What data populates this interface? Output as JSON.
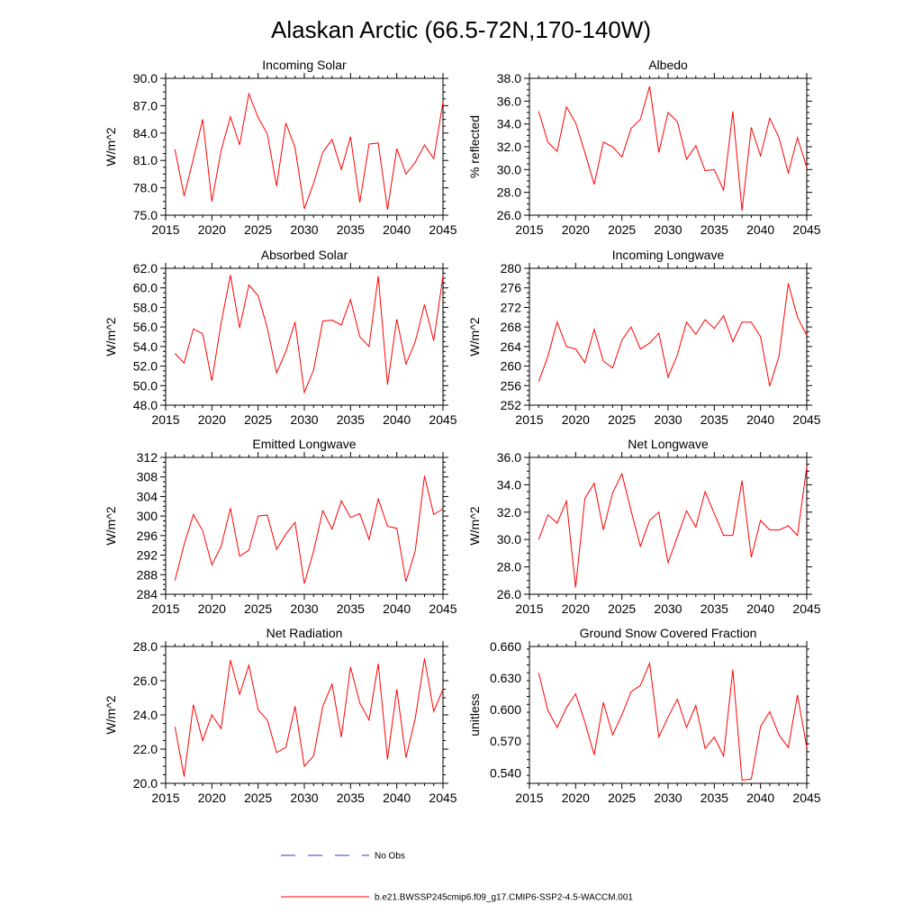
{
  "figure": {
    "title": "Alaskan Arctic (66.5-72N,170-140W)"
  },
  "legend": {
    "obs_label": "No Obs",
    "obs_color": "#3333cc",
    "model_label": "b.e21.BWSSP245cmip6.f09_g17.CMIP6-SSP2-4.5-WACCM.001",
    "model_color": "#ff0000"
  },
  "chart_data": [
    {
      "type": "line",
      "title": "Incoming Solar",
      "ylabel": "W/m^2",
      "xlim": [
        2015,
        2045
      ],
      "ylim": [
        75,
        90
      ],
      "xticks": [
        2015,
        2020,
        2025,
        2030,
        2035,
        2040,
        2045
      ],
      "yticks": [
        "75.0",
        "78.0",
        "81.0",
        "84.0",
        "87.0",
        "90.0"
      ],
      "x": [
        2016,
        2017,
        2018,
        2019,
        2020,
        2021,
        2022,
        2023,
        2024,
        2025,
        2026,
        2027,
        2028,
        2029,
        2030,
        2031,
        2032,
        2033,
        2034,
        2035,
        2036,
        2037,
        2038,
        2039,
        2040,
        2041,
        2042,
        2043,
        2044,
        2045
      ],
      "series": [
        {
          "values": [
            82.2,
            77.1,
            81.2,
            85.5,
            76.5,
            82.1,
            85.8,
            82.7,
            88.3,
            85.7,
            83.9,
            78.2,
            85.1,
            82.4,
            75.7,
            78.5,
            81.9,
            83.3,
            80.0,
            83.6,
            76.4,
            82.8,
            82.9,
            75.6,
            82.3,
            79.5,
            80.8,
            82.7,
            81.2,
            87.4
          ]
        }
      ]
    },
    {
      "type": "line",
      "title": "Albedo",
      "ylabel": "% reflected",
      "xlim": [
        2015,
        2045
      ],
      "ylim": [
        26,
        38
      ],
      "xticks": [
        2015,
        2020,
        2025,
        2030,
        2035,
        2040,
        2045
      ],
      "yticks": [
        "26.0",
        "28.0",
        "30.0",
        "32.0",
        "34.0",
        "36.0",
        "38.0"
      ],
      "x": [
        2016,
        2017,
        2018,
        2019,
        2020,
        2021,
        2022,
        2023,
        2024,
        2025,
        2026,
        2027,
        2028,
        2029,
        2030,
        2031,
        2032,
        2033,
        2034,
        2035,
        2036,
        2037,
        2038,
        2039,
        2040,
        2041,
        2042,
        2043,
        2044,
        2045
      ],
      "series": [
        {
          "values": [
            35.1,
            32.4,
            31.6,
            35.5,
            34.1,
            31.5,
            28.7,
            32.4,
            32.0,
            31.1,
            33.6,
            34.4,
            37.3,
            31.5,
            35.0,
            34.2,
            30.9,
            32.1,
            29.9,
            30.0,
            28.2,
            35.1,
            26.4,
            33.7,
            31.2,
            34.5,
            32.8,
            29.7,
            32.8,
            30.2
          ]
        }
      ]
    },
    {
      "type": "line",
      "title": "Absorbed Solar",
      "ylabel": "W/m^2",
      "xlim": [
        2015,
        2045
      ],
      "ylim": [
        48,
        62
      ],
      "xticks": [
        2015,
        2020,
        2025,
        2030,
        2035,
        2040,
        2045
      ],
      "yticks": [
        "48.0",
        "50.0",
        "52.0",
        "54.0",
        "56.0",
        "58.0",
        "60.0",
        "62.0"
      ],
      "x": [
        2016,
        2017,
        2018,
        2019,
        2020,
        2021,
        2022,
        2023,
        2024,
        2025,
        2026,
        2027,
        2028,
        2029,
        2030,
        2031,
        2032,
        2033,
        2034,
        2035,
        2036,
        2037,
        2038,
        2039,
        2040,
        2041,
        2042,
        2043,
        2044,
        2045
      ],
      "series": [
        {
          "values": [
            53.3,
            52.3,
            55.8,
            55.3,
            50.5,
            56.4,
            61.3,
            55.9,
            60.3,
            59.2,
            55.9,
            51.3,
            53.5,
            56.5,
            49.3,
            51.6,
            56.6,
            56.7,
            56.2,
            58.8,
            55.0,
            54.0,
            61.2,
            50.1,
            56.8,
            52.2,
            54.5,
            58.3,
            54.6,
            61.2
          ]
        }
      ]
    },
    {
      "type": "line",
      "title": "Incoming Longwave",
      "ylabel": "W/m^2",
      "xlim": [
        2015,
        2045
      ],
      "ylim": [
        252,
        280
      ],
      "xticks": [
        2015,
        2020,
        2025,
        2030,
        2035,
        2040,
        2045
      ],
      "yticks": [
        "252",
        "256",
        "260",
        "264",
        "268",
        "272",
        "276",
        "280"
      ],
      "x": [
        2016,
        2017,
        2018,
        2019,
        2020,
        2021,
        2022,
        2023,
        2024,
        2025,
        2026,
        2027,
        2028,
        2029,
        2030,
        2031,
        2032,
        2033,
        2034,
        2035,
        2036,
        2037,
        2038,
        2039,
        2040,
        2041,
        2042,
        2043,
        2044,
        2045
      ],
      "series": [
        {
          "values": [
            256.8,
            262.0,
            269.0,
            264.0,
            263.5,
            260.7,
            267.5,
            261.0,
            259.6,
            265.3,
            268.0,
            263.5,
            264.7,
            266.7,
            257.7,
            262.3,
            269.0,
            266.5,
            269.5,
            267.7,
            270.3,
            265.0,
            269.0,
            269.0,
            266.0,
            255.9,
            262.0,
            276.9,
            270.0,
            266.3
          ]
        }
      ]
    },
    {
      "type": "line",
      "title": "Emitted Longwave",
      "ylabel": "W/m^2",
      "xlim": [
        2015,
        2045
      ],
      "ylim": [
        284,
        312
      ],
      "xticks": [
        2015,
        2020,
        2025,
        2030,
        2035,
        2040,
        2045
      ],
      "yticks": [
        "284",
        "288",
        "292",
        "296",
        "300",
        "304",
        "308",
        "312"
      ],
      "x": [
        2016,
        2017,
        2018,
        2019,
        2020,
        2021,
        2022,
        2023,
        2024,
        2025,
        2026,
        2027,
        2028,
        2029,
        2030,
        2031,
        2032,
        2033,
        2034,
        2035,
        2036,
        2037,
        2038,
        2039,
        2040,
        2041,
        2042,
        2043,
        2044,
        2045
      ],
      "series": [
        {
          "values": [
            286.8,
            294.2,
            300.3,
            297.0,
            290.0,
            293.8,
            301.6,
            291.8,
            293.0,
            300.0,
            300.2,
            293.2,
            296.3,
            298.7,
            286.2,
            292.8,
            301.1,
            297.3,
            303.1,
            299.7,
            300.5,
            295.2,
            303.5,
            297.9,
            297.5,
            286.6,
            292.9,
            308.2,
            300.3,
            301.5
          ]
        }
      ]
    },
    {
      "type": "line",
      "title": "Net Longwave",
      "ylabel": "W/m^2",
      "xlim": [
        2015,
        2045
      ],
      "ylim": [
        26,
        36
      ],
      "xticks": [
        2015,
        2020,
        2025,
        2030,
        2035,
        2040,
        2045
      ],
      "yticks": [
        "26.0",
        "28.0",
        "30.0",
        "32.0",
        "34.0",
        "36.0"
      ],
      "x": [
        2016,
        2017,
        2018,
        2019,
        2020,
        2021,
        2022,
        2023,
        2024,
        2025,
        2026,
        2027,
        2028,
        2029,
        2030,
        2031,
        2032,
        2033,
        2034,
        2035,
        2036,
        2037,
        2038,
        2039,
        2040,
        2041,
        2042,
        2043,
        2044,
        2045
      ],
      "series": [
        {
          "values": [
            30.0,
            31.8,
            31.2,
            32.8,
            26.5,
            33.0,
            34.1,
            30.7,
            33.4,
            34.8,
            32.1,
            29.5,
            31.4,
            32.0,
            28.3,
            30.2,
            32.1,
            30.9,
            33.5,
            31.9,
            30.3,
            30.3,
            34.3,
            28.7,
            31.4,
            30.7,
            30.7,
            31.0,
            30.3,
            35.3
          ]
        }
      ]
    },
    {
      "type": "line",
      "title": "Net Radiation",
      "ylabel": "W/m^2",
      "xlim": [
        2015,
        2045
      ],
      "ylim": [
        20,
        28
      ],
      "xticks": [
        2015,
        2020,
        2025,
        2030,
        2035,
        2040,
        2045
      ],
      "yticks": [
        "20.0",
        "22.0",
        "24.0",
        "26.0",
        "28.0"
      ],
      "x": [
        2016,
        2017,
        2018,
        2019,
        2020,
        2021,
        2022,
        2023,
        2024,
        2025,
        2026,
        2027,
        2028,
        2029,
        2030,
        2031,
        2032,
        2033,
        2034,
        2035,
        2036,
        2037,
        2038,
        2039,
        2040,
        2041,
        2042,
        2043,
        2044,
        2045
      ],
      "series": [
        {
          "values": [
            23.3,
            20.4,
            24.6,
            22.5,
            24.0,
            23.2,
            27.2,
            25.2,
            26.9,
            24.3,
            23.7,
            21.8,
            22.1,
            24.5,
            21.0,
            21.6,
            24.5,
            25.8,
            22.7,
            26.8,
            24.7,
            23.7,
            27.0,
            21.4,
            25.5,
            21.5,
            23.8,
            27.3,
            24.2,
            25.5
          ]
        }
      ]
    },
    {
      "type": "line",
      "title": "Ground Snow Covered Fraction",
      "ylabel": "unitless",
      "xlim": [
        2015,
        2045
      ],
      "ylim": [
        0.53,
        0.66
      ],
      "xticks": [
        2015,
        2020,
        2025,
        2030,
        2035,
        2040,
        2045
      ],
      "yticks": [
        "0.540",
        "0.570",
        "0.600",
        "0.630",
        "0.660"
      ],
      "x": [
        2016,
        2017,
        2018,
        2019,
        2020,
        2021,
        2022,
        2023,
        2024,
        2025,
        2026,
        2027,
        2028,
        2029,
        2030,
        2031,
        2032,
        2033,
        2034,
        2035,
        2036,
        2037,
        2038,
        2039,
        2040,
        2041,
        2042,
        2043,
        2044,
        2045
      ],
      "series": [
        {
          "values": [
            0.635,
            0.599,
            0.583,
            0.602,
            0.615,
            0.588,
            0.557,
            0.607,
            0.576,
            0.595,
            0.617,
            0.623,
            0.644,
            0.574,
            0.593,
            0.61,
            0.583,
            0.604,
            0.563,
            0.574,
            0.556,
            0.638,
            0.533,
            0.534,
            0.584,
            0.598,
            0.576,
            0.564,
            0.614,
            0.564
          ]
        }
      ]
    }
  ]
}
